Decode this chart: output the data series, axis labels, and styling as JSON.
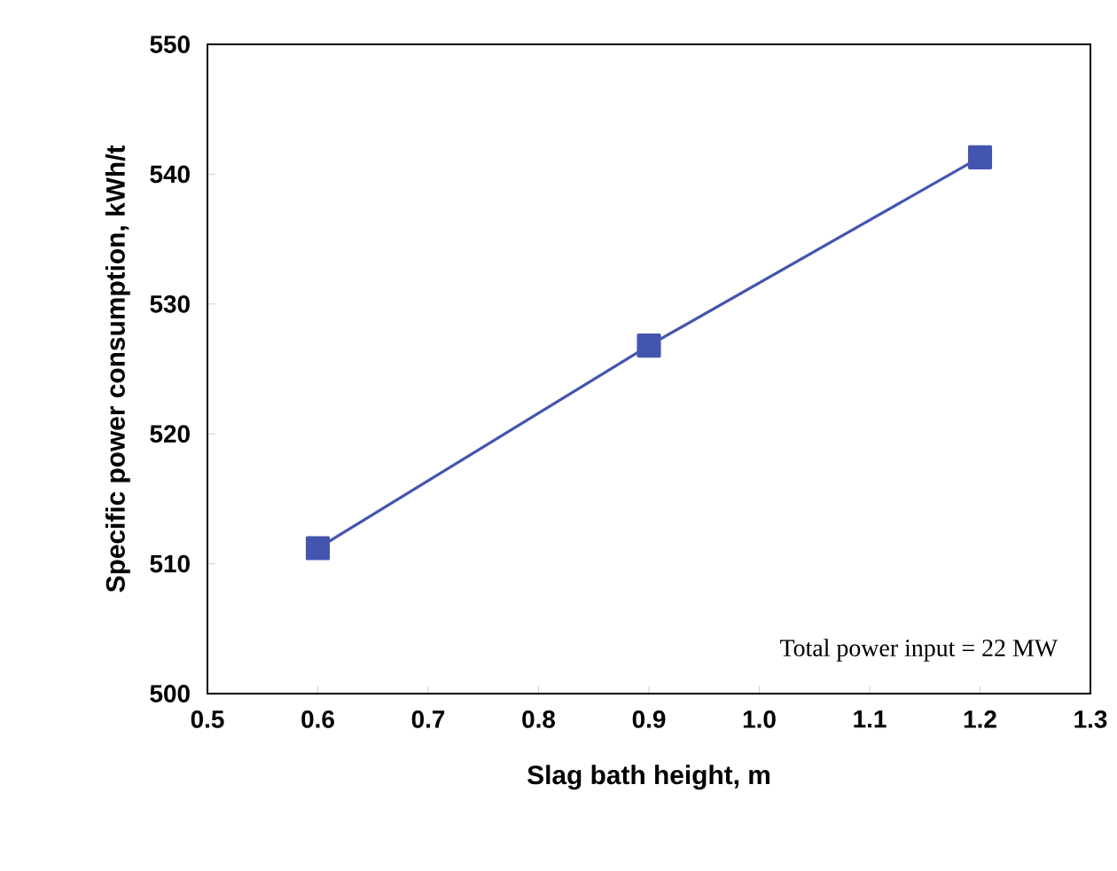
{
  "chart_data": {
    "type": "line",
    "xlabel": "Slag bath height, m",
    "ylabel": "Specific power consumption, kWh/t",
    "x": [
      0.6,
      0.9,
      1.2
    ],
    "series": [
      {
        "color": "#4455b0",
        "values": [
          511.2,
          526.8,
          541.3
        ]
      }
    ],
    "xlim": [
      0.5,
      1.3
    ],
    "xticks": [
      {
        "value": 0.5,
        "label": "0.5"
      },
      {
        "value": 0.6,
        "label": "0.6"
      },
      {
        "value": 0.7,
        "label": "0.7"
      },
      {
        "value": 0.8,
        "label": "0.8"
      },
      {
        "value": 0.9,
        "label": "0.9"
      },
      {
        "value": 1.0,
        "label": "1.0"
      },
      {
        "value": 1.1,
        "label": "1.1"
      },
      {
        "value": 1.2,
        "label": "1.2"
      },
      {
        "value": 1.3,
        "label": "1.3"
      }
    ],
    "ylim": [
      500,
      550
    ],
    "yticks": [
      500,
      510,
      520,
      530,
      540,
      550
    ],
    "marker": "square",
    "line_style": "solid",
    "annotations": [
      "Total power input = 22 MW"
    ]
  }
}
